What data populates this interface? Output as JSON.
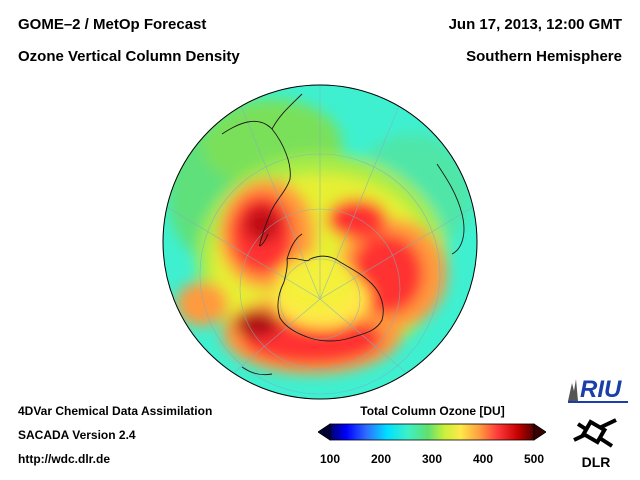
{
  "header": {
    "title_left_1": "GOME–2 / MetOp Forecast",
    "title_left_2": "Ozone Vertical Column Density",
    "date": "Jun 17, 2013, 12:00 GMT",
    "region": "Southern Hemisphere"
  },
  "footer": {
    "line1": "4DVar Chemical Data Assimilation",
    "line2": "SACADA Version 2.4",
    "line3": "http://wdc.dlr.de"
  },
  "colorbar": {
    "title": "Total Column Ozone [DU]",
    "ticks": [
      "100",
      "200",
      "300",
      "400",
      "500"
    ],
    "tick_values": [
      100,
      200,
      300,
      400,
      500
    ],
    "min": 100,
    "max": 500,
    "colors": [
      "#000066",
      "#0000ff",
      "#2f6fff",
      "#00e0ff",
      "#3df0c8",
      "#5fe06f",
      "#c8f03c",
      "#ffe84a",
      "#ffa040",
      "#ff3c3c",
      "#c80000",
      "#500000"
    ]
  },
  "logos": {
    "riu": "RIU",
    "dlr": "DLR"
  },
  "map_colors": {
    "ocean_base": "#3ef0d0",
    "mid": "#6fdc5a",
    "yellow": "#e6f032",
    "orange": "#ff9a3c",
    "red": "#ff2a2a",
    "dark": "#b40a14",
    "coast": "#1a1a1a",
    "grid": "#7fb0c0"
  }
}
